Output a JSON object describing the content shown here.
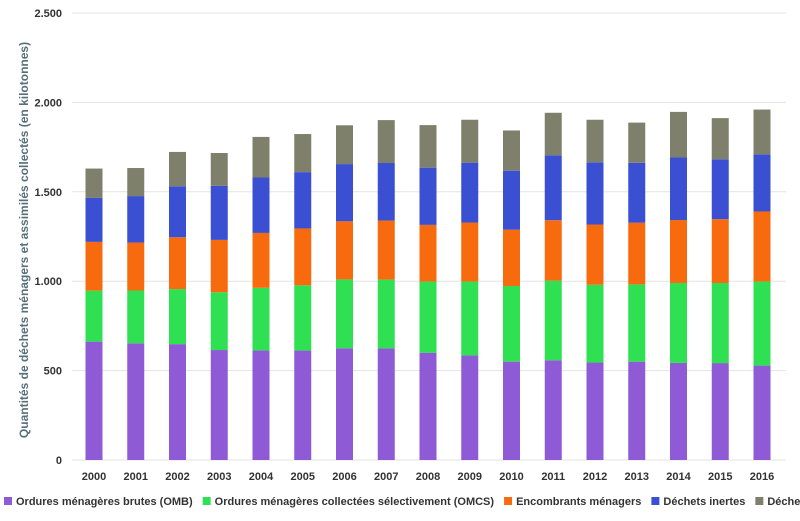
{
  "chart_data": {
    "type": "bar",
    "stacked": true,
    "title": "",
    "xlabel": "",
    "ylabel": "Quantités de déchets ménagers et assimilés collectés (en kilotonnes)",
    "ylim": [
      0,
      2500
    ],
    "yticks": [
      {
        "value": 0,
        "label": "0"
      },
      {
        "value": 500,
        "label": "500"
      },
      {
        "value": 1000,
        "label": "1.000"
      },
      {
        "value": 1500,
        "label": "1.500"
      },
      {
        "value": 2000,
        "label": "2.000"
      },
      {
        "value": 2500,
        "label": "2.500"
      }
    ],
    "grid": true,
    "legend_position": "bottom",
    "categories": [
      "2000",
      "2001",
      "2002",
      "2003",
      "2004",
      "2005",
      "2006",
      "2007",
      "2008",
      "2009",
      "2010",
      "2011",
      "2012",
      "2013",
      "2014",
      "2015",
      "2016"
    ],
    "series": [
      {
        "name": "Ordures ménagères brutes (OMB)",
        "color": "#8e5ad6",
        "values": [
          662,
          653,
          648,
          615,
          613,
          612,
          625,
          624,
          600,
          585,
          550,
          558,
          545,
          550,
          543,
          542,
          528
        ]
      },
      {
        "name": "Ordures ménagères collectées sélectivement (OMCS)",
        "color": "#2fe052",
        "values": [
          285,
          295,
          308,
          323,
          350,
          365,
          385,
          385,
          398,
          413,
          423,
          445,
          435,
          432,
          447,
          448,
          470
        ]
      },
      {
        "name": "Encombrants ménagers",
        "color": "#f76b0e",
        "values": [
          273,
          268,
          290,
          293,
          307,
          318,
          325,
          330,
          317,
          330,
          315,
          338,
          337,
          345,
          352,
          357,
          392
        ]
      },
      {
        "name": "Déchets inertes",
        "color": "#3a4fd2",
        "values": [
          247,
          260,
          285,
          302,
          310,
          315,
          320,
          322,
          320,
          335,
          330,
          363,
          348,
          335,
          350,
          335,
          320
        ]
      },
      {
        "name": "Déchets verts",
        "color": "#7f806b",
        "values": [
          163,
          157,
          192,
          184,
          227,
          213,
          217,
          240,
          238,
          240,
          225,
          238,
          238,
          225,
          255,
          230,
          250
        ]
      }
    ]
  }
}
